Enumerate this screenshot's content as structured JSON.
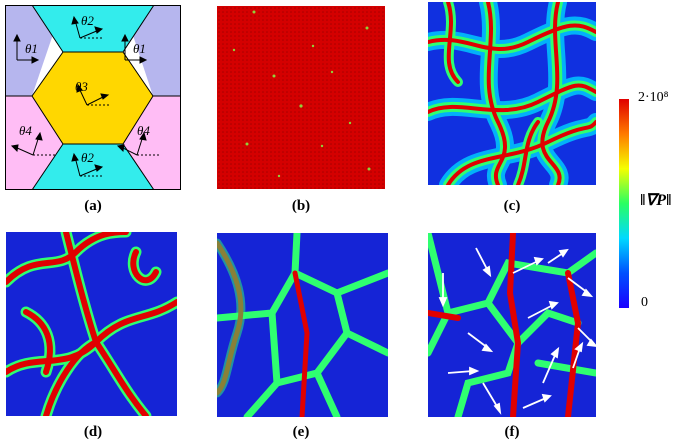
{
  "captions": {
    "a": "(a)",
    "b": "(b)",
    "c": "(c)",
    "d": "(d)",
    "e": "(e)",
    "f": "(f)"
  },
  "grain_labels": {
    "t1": "θ1",
    "t2": "θ2",
    "t3": "θ3",
    "t4": "θ4"
  },
  "grain_colors": {
    "theta1": "#b6b6ee",
    "theta2": "#33ecec",
    "theta3": "#ffd700",
    "theta4": "#ffbdf5"
  },
  "colorbar": {
    "max_label": "2·10⁸",
    "mid_label": "‖∇P‖",
    "min_label": "0",
    "colors": [
      "#1a00ff",
      "#0050ff",
      "#00d9ff",
      "#29ff62",
      "#f5ff00",
      "#ff7a00",
      "#e00000"
    ]
  }
}
